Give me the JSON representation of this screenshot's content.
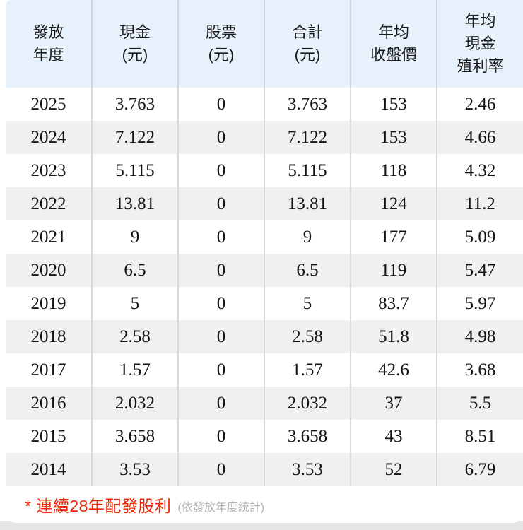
{
  "table": {
    "columns": [
      {
        "id": "issue-year",
        "label_lines": [
          "發放",
          "年度"
        ]
      },
      {
        "id": "cash",
        "label_lines": [
          "現金",
          "(元)"
        ]
      },
      {
        "id": "stock",
        "label_lines": [
          "股票",
          "(元)"
        ]
      },
      {
        "id": "total",
        "label_lines": [
          "合計",
          "(元)"
        ]
      },
      {
        "id": "avg-close-price",
        "label_lines": [
          "年均",
          "收盤價"
        ]
      },
      {
        "id": "avg-cash-yield",
        "label_lines": [
          "年均",
          "現金",
          "殖利率"
        ]
      }
    ],
    "rows": [
      [
        "2025",
        "3.763",
        "0",
        "3.763",
        "153",
        "2.46"
      ],
      [
        "2024",
        "7.122",
        "0",
        "7.122",
        "153",
        "4.66"
      ],
      [
        "2023",
        "5.115",
        "0",
        "5.115",
        "118",
        "4.32"
      ],
      [
        "2022",
        "13.81",
        "0",
        "13.81",
        "124",
        "11.2"
      ],
      [
        "2021",
        "9",
        "0",
        "9",
        "177",
        "5.09"
      ],
      [
        "2020",
        "6.5",
        "0",
        "6.5",
        "119",
        "5.47"
      ],
      [
        "2019",
        "5",
        "0",
        "5",
        "83.7",
        "5.97"
      ],
      [
        "2018",
        "2.58",
        "0",
        "2.58",
        "51.8",
        "4.98"
      ],
      [
        "2017",
        "1.57",
        "0",
        "1.57",
        "42.6",
        "3.68"
      ],
      [
        "2016",
        "2.032",
        "0",
        "2.032",
        "37",
        "5.5"
      ],
      [
        "2015",
        "3.658",
        "0",
        "3.658",
        "43",
        "8.51"
      ],
      [
        "2014",
        "3.53",
        "0",
        "3.53",
        "52",
        "6.79"
      ]
    ]
  },
  "footnote": {
    "highlight": "* 連續28年配發股利",
    "note": "(依發放年度統計)"
  },
  "colors": {
    "header_bg": "#e7f1fb",
    "row_alt_bg": "#f0f0f0",
    "header_separator": "#ccd6de",
    "row_separator": "#dadada",
    "footnote_red": "#ed2604",
    "note_gray": "#b3b3b3",
    "bottom_strip": "#e5e5e5"
  }
}
